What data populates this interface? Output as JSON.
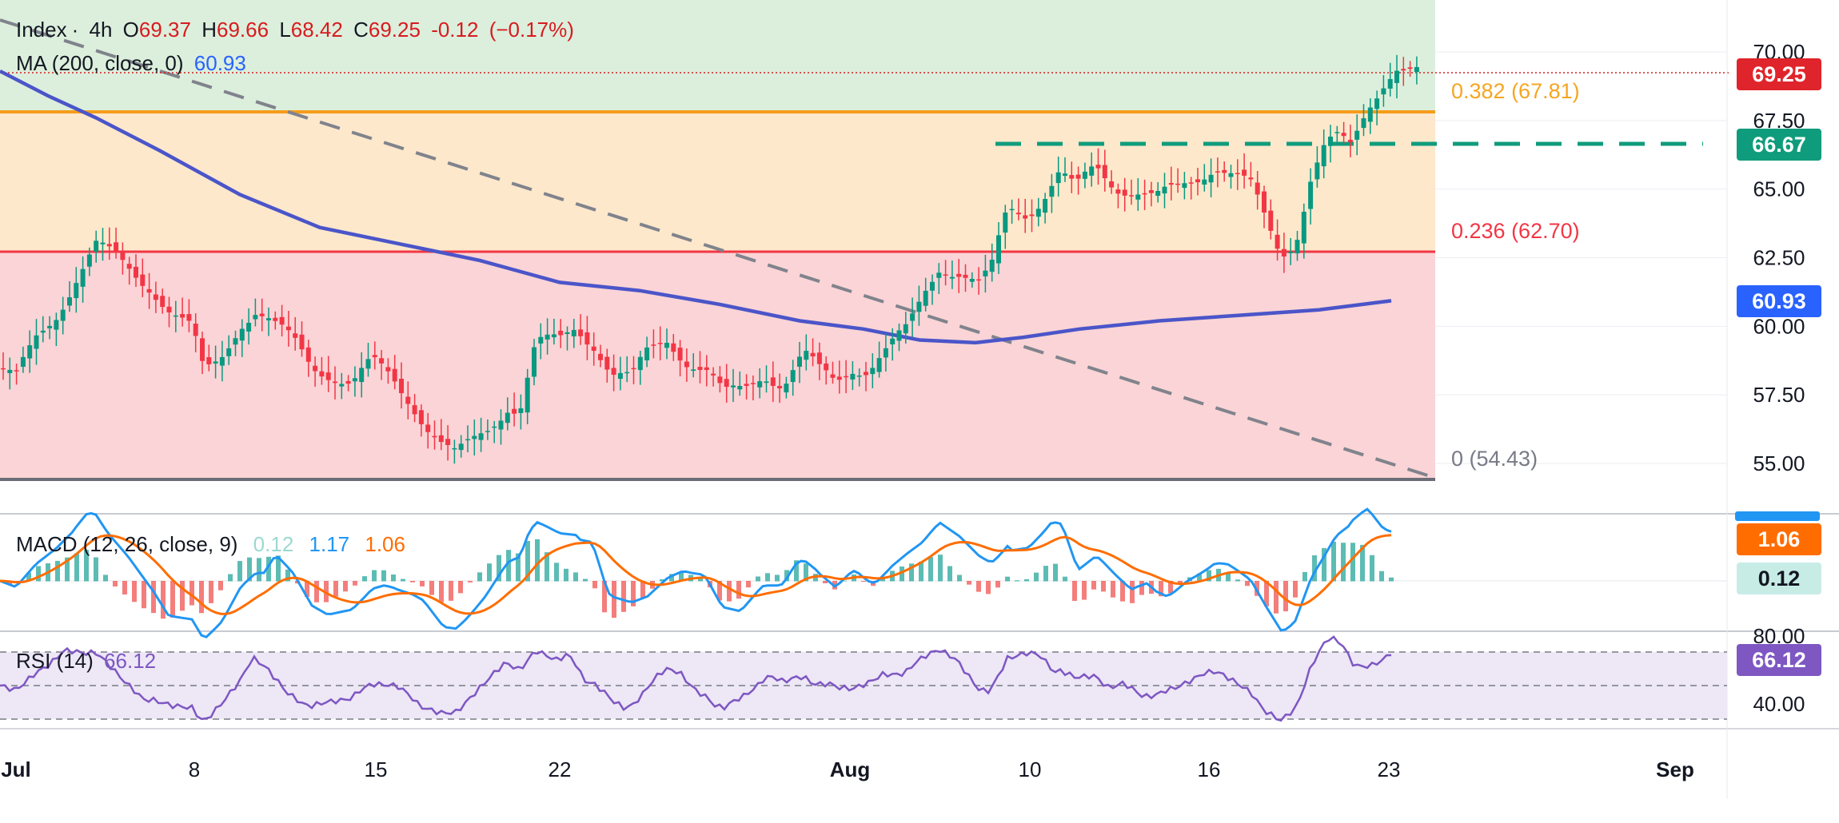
{
  "legend": {
    "symbol": "Index",
    "interval": "4h",
    "open_label": "O",
    "open": "69.37",
    "high_label": "H",
    "high": "69.66",
    "low_label": "L",
    "low": "68.42",
    "close_label": "C",
    "close": "69.25",
    "change": "-0.12",
    "change_pct": "(−0.17%)",
    "ma_label": "MA (200, close, 0)",
    "ma_value": "60.93",
    "macd_label": "MACD (12, 26, close, 9)",
    "macd_hist": "0.12",
    "macd_line": "1.17",
    "macd_signal": "1.06",
    "rsi_label": "RSI (14)",
    "rsi_value": "66.12"
  },
  "fib_levels": {
    "f382": {
      "label": "0.382 (67.81)",
      "value": 67.81
    },
    "f236": {
      "label": "0.236 (62.70)",
      "value": 62.7
    },
    "f0": {
      "label": "0 (54.43)",
      "value": 54.43
    }
  },
  "price_tags": {
    "last": "69.25",
    "resistance": "66.67",
    "ma": "60.93",
    "macd_signal": "1.06",
    "macd_hist": "0.12",
    "rsi": "66.12"
  },
  "colors": {
    "up": "#089981",
    "down": "#f23645",
    "ma": "#4b55c9",
    "fib382": "#f5a623",
    "fib236": "#f23645",
    "fib0": "#787b86",
    "resistance": "#0f9c7c",
    "macd": "#2196f3",
    "signal": "#ff6d00",
    "rsi": "#7e57c2"
  },
  "chart_data": {
    "type": "candlestick",
    "price_axis": {
      "ticks": [
        "70.00",
        "67.50",
        "65.00",
        "62.50",
        "60.00",
        "57.50",
        "55.00"
      ],
      "tick_values": [
        70,
        67.5,
        65,
        62.5,
        60,
        57.5,
        55
      ]
    },
    "rsi_axis": {
      "ticks": [
        "80.00",
        "40.00"
      ],
      "tick_values": [
        80,
        40
      ],
      "bands": [
        70,
        50,
        30
      ]
    },
    "x_axis": {
      "ticks": [
        "Jul",
        "8",
        "15",
        "22",
        "Aug",
        "10",
        "16",
        "23",
        "Sep"
      ]
    },
    "trendline": {
      "start_value": 72.6,
      "end_value": 54.6
    },
    "resistance_value": 66.67,
    "last_price": 69.25,
    "ma_value": 60.93,
    "macd": {
      "macd": 1.17,
      "signal": 1.06,
      "hist": 0.12
    },
    "rsi": 66.12
  }
}
